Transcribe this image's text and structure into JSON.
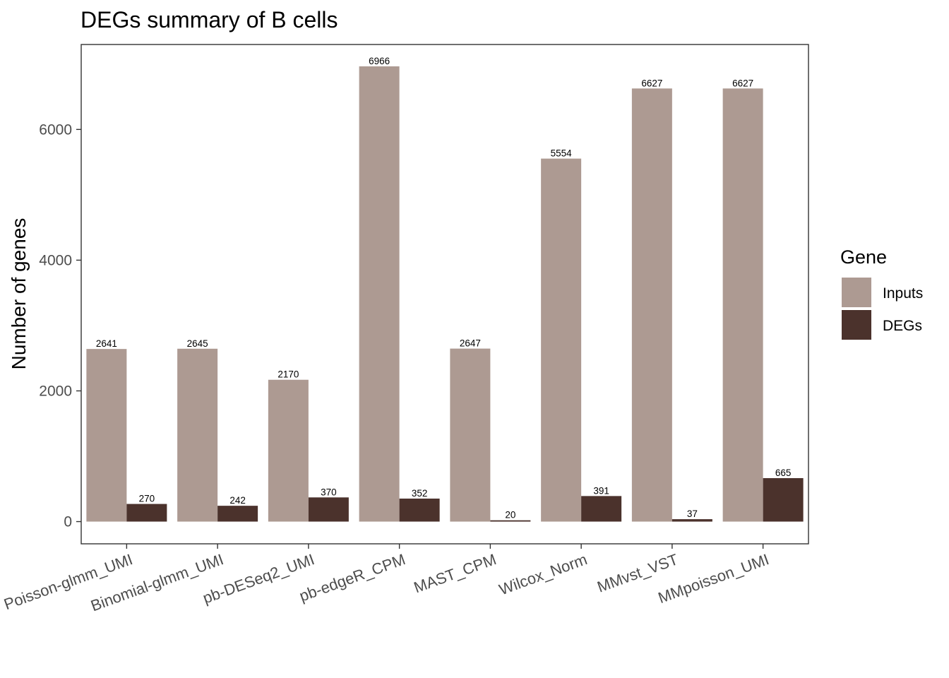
{
  "chart_data": {
    "type": "bar",
    "title": "DEGs summary of  B cells",
    "xlabel": "",
    "ylabel": "Number of genes",
    "categories": [
      "Poisson-glmm_UMI",
      "Binomial-glmm_UMI",
      "pb-DESeq2_UMI",
      "pb-edgeR_CPM",
      "MAST_CPM",
      "Wilcox_Norm",
      "MMvst_VST",
      "MMpoisson_UMI"
    ],
    "series": [
      {
        "name": "Inputs",
        "color": "#ad9a92",
        "values": [
          2641,
          2645,
          2170,
          6966,
          2647,
          5554,
          6627,
          6627
        ]
      },
      {
        "name": "DEGs",
        "color": "#4b322c",
        "values": [
          270,
          242,
          370,
          352,
          20,
          391,
          37,
          665
        ]
      }
    ],
    "yticks": [
      0,
      2000,
      4000,
      6000
    ],
    "ylim": [
      -340,
      7300
    ],
    "grid": false,
    "legend": {
      "title": "Gene",
      "position": "right"
    }
  }
}
